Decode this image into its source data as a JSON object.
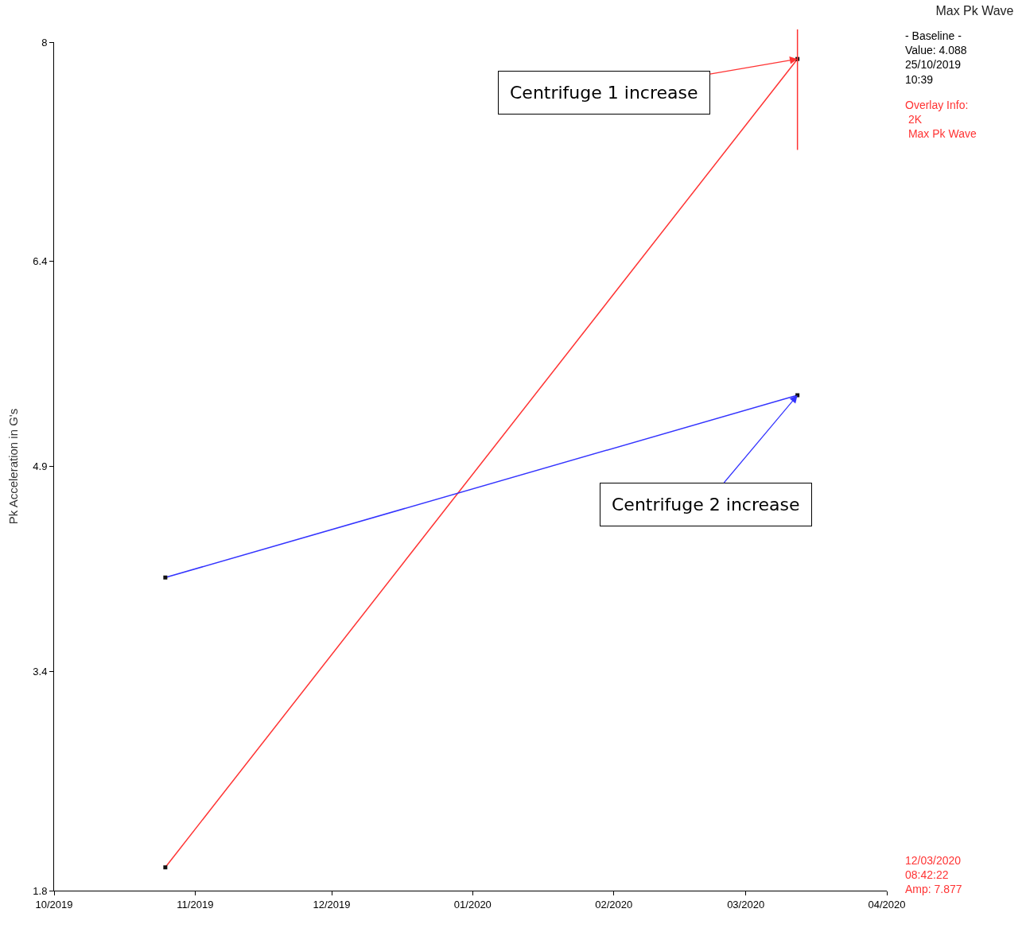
{
  "chart_data": {
    "type": "line",
    "title": "Max Pk Wave",
    "ylabel": "Pk Acceleration in G's",
    "marker": "square",
    "series": [
      {
        "color": "#ff3333",
        "x": [
          "2019-10-25T10:39",
          "2020-03-12T08:42"
        ],
        "values": [
          1.97,
          7.877
        ]
      },
      {
        "color": "#3333ff",
        "x": [
          "2019-10-25T10:39",
          "2020-03-12T08:42"
        ],
        "values": [
          4.088,
          5.42
        ]
      }
    ],
    "xlim": [
      "2019-10-01",
      "2020-04-01"
    ],
    "xticks": [
      {
        "value": "2019-10-01",
        "label": "10/2019"
      },
      {
        "value": "2019-11-01",
        "label": "11/2019"
      },
      {
        "value": "2019-12-01",
        "label": "12/2019"
      },
      {
        "value": "2020-01-01",
        "label": "01/2020"
      },
      {
        "value": "2020-02-01",
        "label": "02/2020"
      },
      {
        "value": "2020-03-01",
        "label": "03/2020"
      },
      {
        "value": "2020-04-01",
        "label": "04/2020"
      }
    ],
    "ylim": [
      1.8,
      8
    ],
    "yticks": [
      1.8,
      3.4,
      4.9,
      6.4,
      8
    ],
    "ref_lines": [
      {
        "axis": "x",
        "value": "2020-03-12T08:42",
        "color": "#ff3333"
      }
    ],
    "annotations": [
      "- Baseline -\nValue: 4.088\n25/10/2019\n10:39",
      "Overlay Info:\n 2K\n Max Pk Wave",
      "12/03/2020\n08:42:22\nAmp: 7.877",
      {
        "text": "Centrifuge 1 increase",
        "x": "2020-03-12T08:42",
        "y": 7.877
      },
      {
        "text": "Centrifuge 2 increase",
        "x": "2020-03-12T08:42",
        "y": 5.42
      }
    ]
  }
}
